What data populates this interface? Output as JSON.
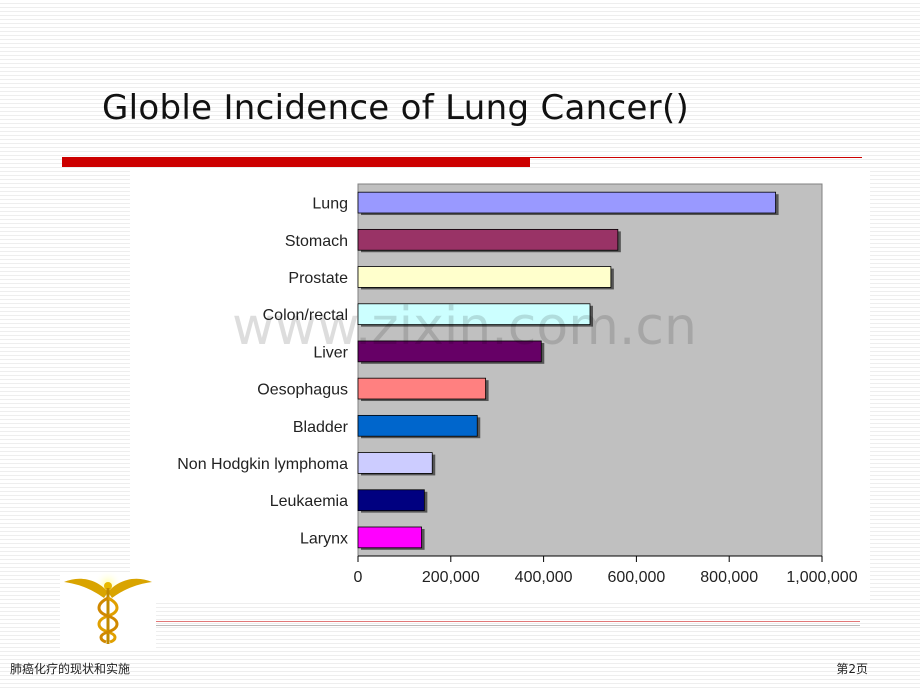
{
  "slide": {
    "title": "Globle Incidence of Lung Cancer()",
    "footer_left": "肺癌化疗的现状和实施",
    "footer_right": "第2页",
    "watermark": "www.zixin.com.cn"
  },
  "colors": {
    "title_rule": "#cc0000",
    "plot_background": "#c0c0c0"
  },
  "chart_data": {
    "type": "bar",
    "orientation": "horizontal",
    "categories": [
      "Lung",
      "Stomach",
      "Prostate",
      "Colon/rectal",
      "Liver",
      "Oesophagus",
      "Bladder",
      "Non Hodgkin lymphoma",
      "Leukaemia",
      "Larynx"
    ],
    "values": [
      900000,
      560000,
      545000,
      500000,
      395000,
      275000,
      257000,
      160000,
      143000,
      137000
    ],
    "colors": [
      "#9999ff",
      "#993366",
      "#ffffcc",
      "#ccffff",
      "#660066",
      "#ff8080",
      "#0066cc",
      "#ccccff",
      "#000080",
      "#ff00ff"
    ],
    "xlim": [
      0,
      1000000
    ],
    "ticks": [
      0,
      200000,
      400000,
      600000,
      800000,
      1000000
    ],
    "tick_labels": [
      "0",
      "200,000",
      "400,000",
      "600,000",
      "800,000",
      "1,000,000"
    ],
    "grid": false,
    "legend": "none"
  }
}
